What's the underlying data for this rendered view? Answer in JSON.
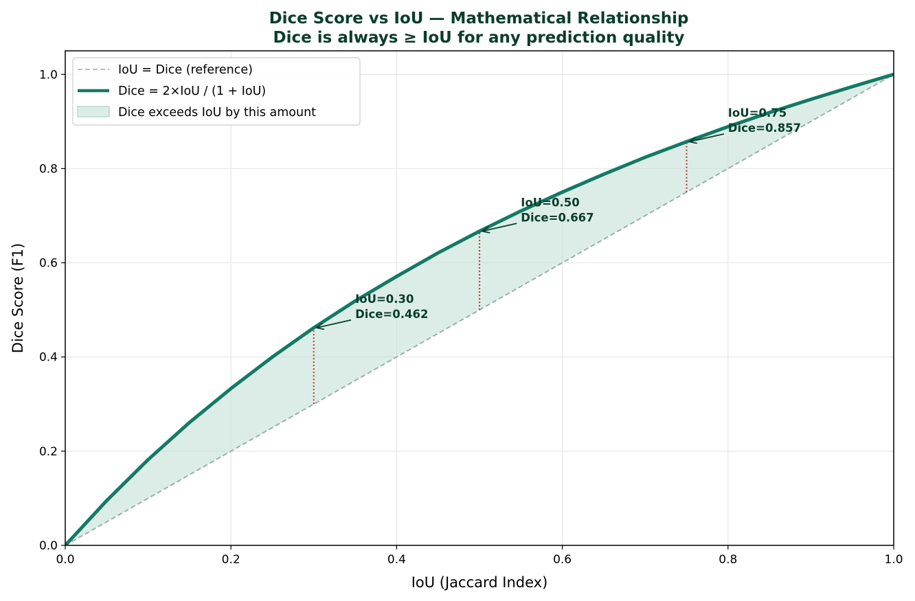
{
  "colors": {
    "dice_line": "#137a64",
    "fill": "#c4e1d9",
    "reference_line": "#bdbdbd",
    "reference_line_over_fill": "#97b2aa",
    "gap_marker": "#c0392b",
    "title": "#0b3d2c",
    "annotation": "#0b3d2c",
    "grid": "#e6e6e6"
  },
  "chart_data": {
    "type": "line",
    "title": "Dice Score vs IoU — Mathematical Relationship",
    "subtitle": "Dice is always ≥ IoU for any prediction quality",
    "xlabel": "IoU (Jaccard Index)",
    "ylabel": "Dice Score (F1)",
    "xlim": [
      0,
      1
    ],
    "ylim": [
      0,
      1.05
    ],
    "grid": true,
    "legend_position": "upper-left",
    "x_ticks": [
      "0.0",
      "0.2",
      "0.4",
      "0.6",
      "0.8",
      "1.0"
    ],
    "y_ticks": [
      "0.0",
      "0.2",
      "0.4",
      "0.6",
      "0.8",
      "1.0"
    ],
    "series": [
      {
        "name": "IoU = Dice (reference)",
        "style": "dashed",
        "x": [
          0,
          1
        ],
        "y": [
          0,
          1
        ]
      },
      {
        "name": "Dice = 2×IoU / (1 + IoU)",
        "style": "solid",
        "x": [
          0,
          0.05,
          0.1,
          0.15,
          0.2,
          0.25,
          0.3,
          0.35,
          0.4,
          0.45,
          0.5,
          0.55,
          0.6,
          0.65,
          0.7,
          0.75,
          0.8,
          0.85,
          0.9,
          0.95,
          1.0
        ],
        "y": [
          0,
          0.095,
          0.182,
          0.261,
          0.333,
          0.4,
          0.462,
          0.519,
          0.571,
          0.621,
          0.667,
          0.71,
          0.75,
          0.788,
          0.824,
          0.857,
          0.889,
          0.919,
          0.947,
          0.974,
          1.0
        ]
      }
    ],
    "fill_label": "Dice exceeds IoU by this amount",
    "annotations": [
      {
        "iou": 0.3,
        "dice": 0.462,
        "line1": "IoU=0.30",
        "line2": "Dice=0.462",
        "text_x": 0.35,
        "text_y": 0.515
      },
      {
        "iou": 0.5,
        "dice": 0.667,
        "line1": "IoU=0.50",
        "line2": "Dice=0.667",
        "text_x": 0.55,
        "text_y": 0.72
      },
      {
        "iou": 0.75,
        "dice": 0.857,
        "line1": "IoU=0.75",
        "line2": "Dice=0.857",
        "text_x": 0.8,
        "text_y": 0.91
      }
    ]
  }
}
